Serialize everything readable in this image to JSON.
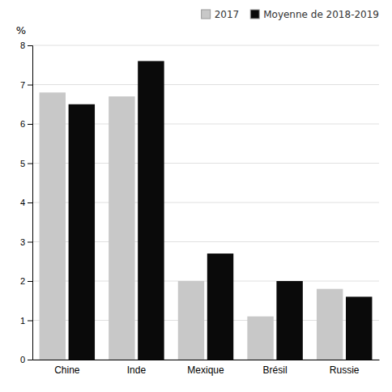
{
  "chart_data": {
    "type": "bar",
    "ylabel": "%",
    "categories": [
      "Chine",
      "Inde",
      "Mexique",
      "Brésil",
      "Russie"
    ],
    "series": [
      {
        "name": "2017",
        "color": "#c8c8c8",
        "values": [
          6.8,
          6.7,
          2.0,
          1.1,
          1.8
        ]
      },
      {
        "name": "Moyenne de 2018-2019",
        "color": "#0a0a0a",
        "values": [
          6.5,
          7.6,
          2.7,
          2.0,
          1.6
        ]
      }
    ],
    "ylim": [
      0,
      8
    ],
    "yticks": [
      0,
      1,
      2,
      3,
      4,
      5,
      6,
      7,
      8
    ],
    "grid": true,
    "legend": "upper right"
  }
}
